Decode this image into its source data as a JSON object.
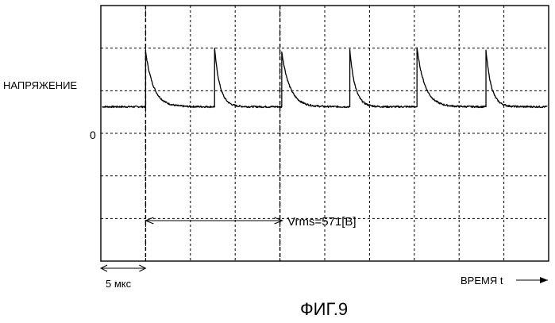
{
  "chart_data": {
    "type": "line",
    "ylabel": "НАПРЯЖЕНИЕ",
    "xlabel": "ВРЕМЯ t",
    "y_zero_label": "0",
    "annotation": "Vrms=571[В]",
    "time_scale_label": "5 мкс",
    "caption": "ФИГ.9",
    "grid": true,
    "xlim": [
      0,
      50
    ],
    "ylim": [
      -4.5,
      2.95
    ],
    "x_divisions": 10,
    "y_divisions": 6,
    "time_per_division_us": 5,
    "baseline": 0,
    "markers_x": [
      5,
      20
    ],
    "vrms_span_x": [
      5,
      20
    ],
    "pulses": [
      {
        "x": 5.0,
        "peak": 1.6,
        "decay_tau": 0.9
      },
      {
        "x": 12.7,
        "peak": 1.7,
        "decay_tau": 0.6
      },
      {
        "x": 20.2,
        "peak": 1.6,
        "decay_tau": 0.9
      },
      {
        "x": 27.8,
        "peak": 1.65,
        "decay_tau": 0.6
      },
      {
        "x": 35.3,
        "peak": 1.7,
        "decay_tau": 0.9
      },
      {
        "x": 43.0,
        "peak": 1.65,
        "decay_tau": 0.6
      }
    ]
  }
}
